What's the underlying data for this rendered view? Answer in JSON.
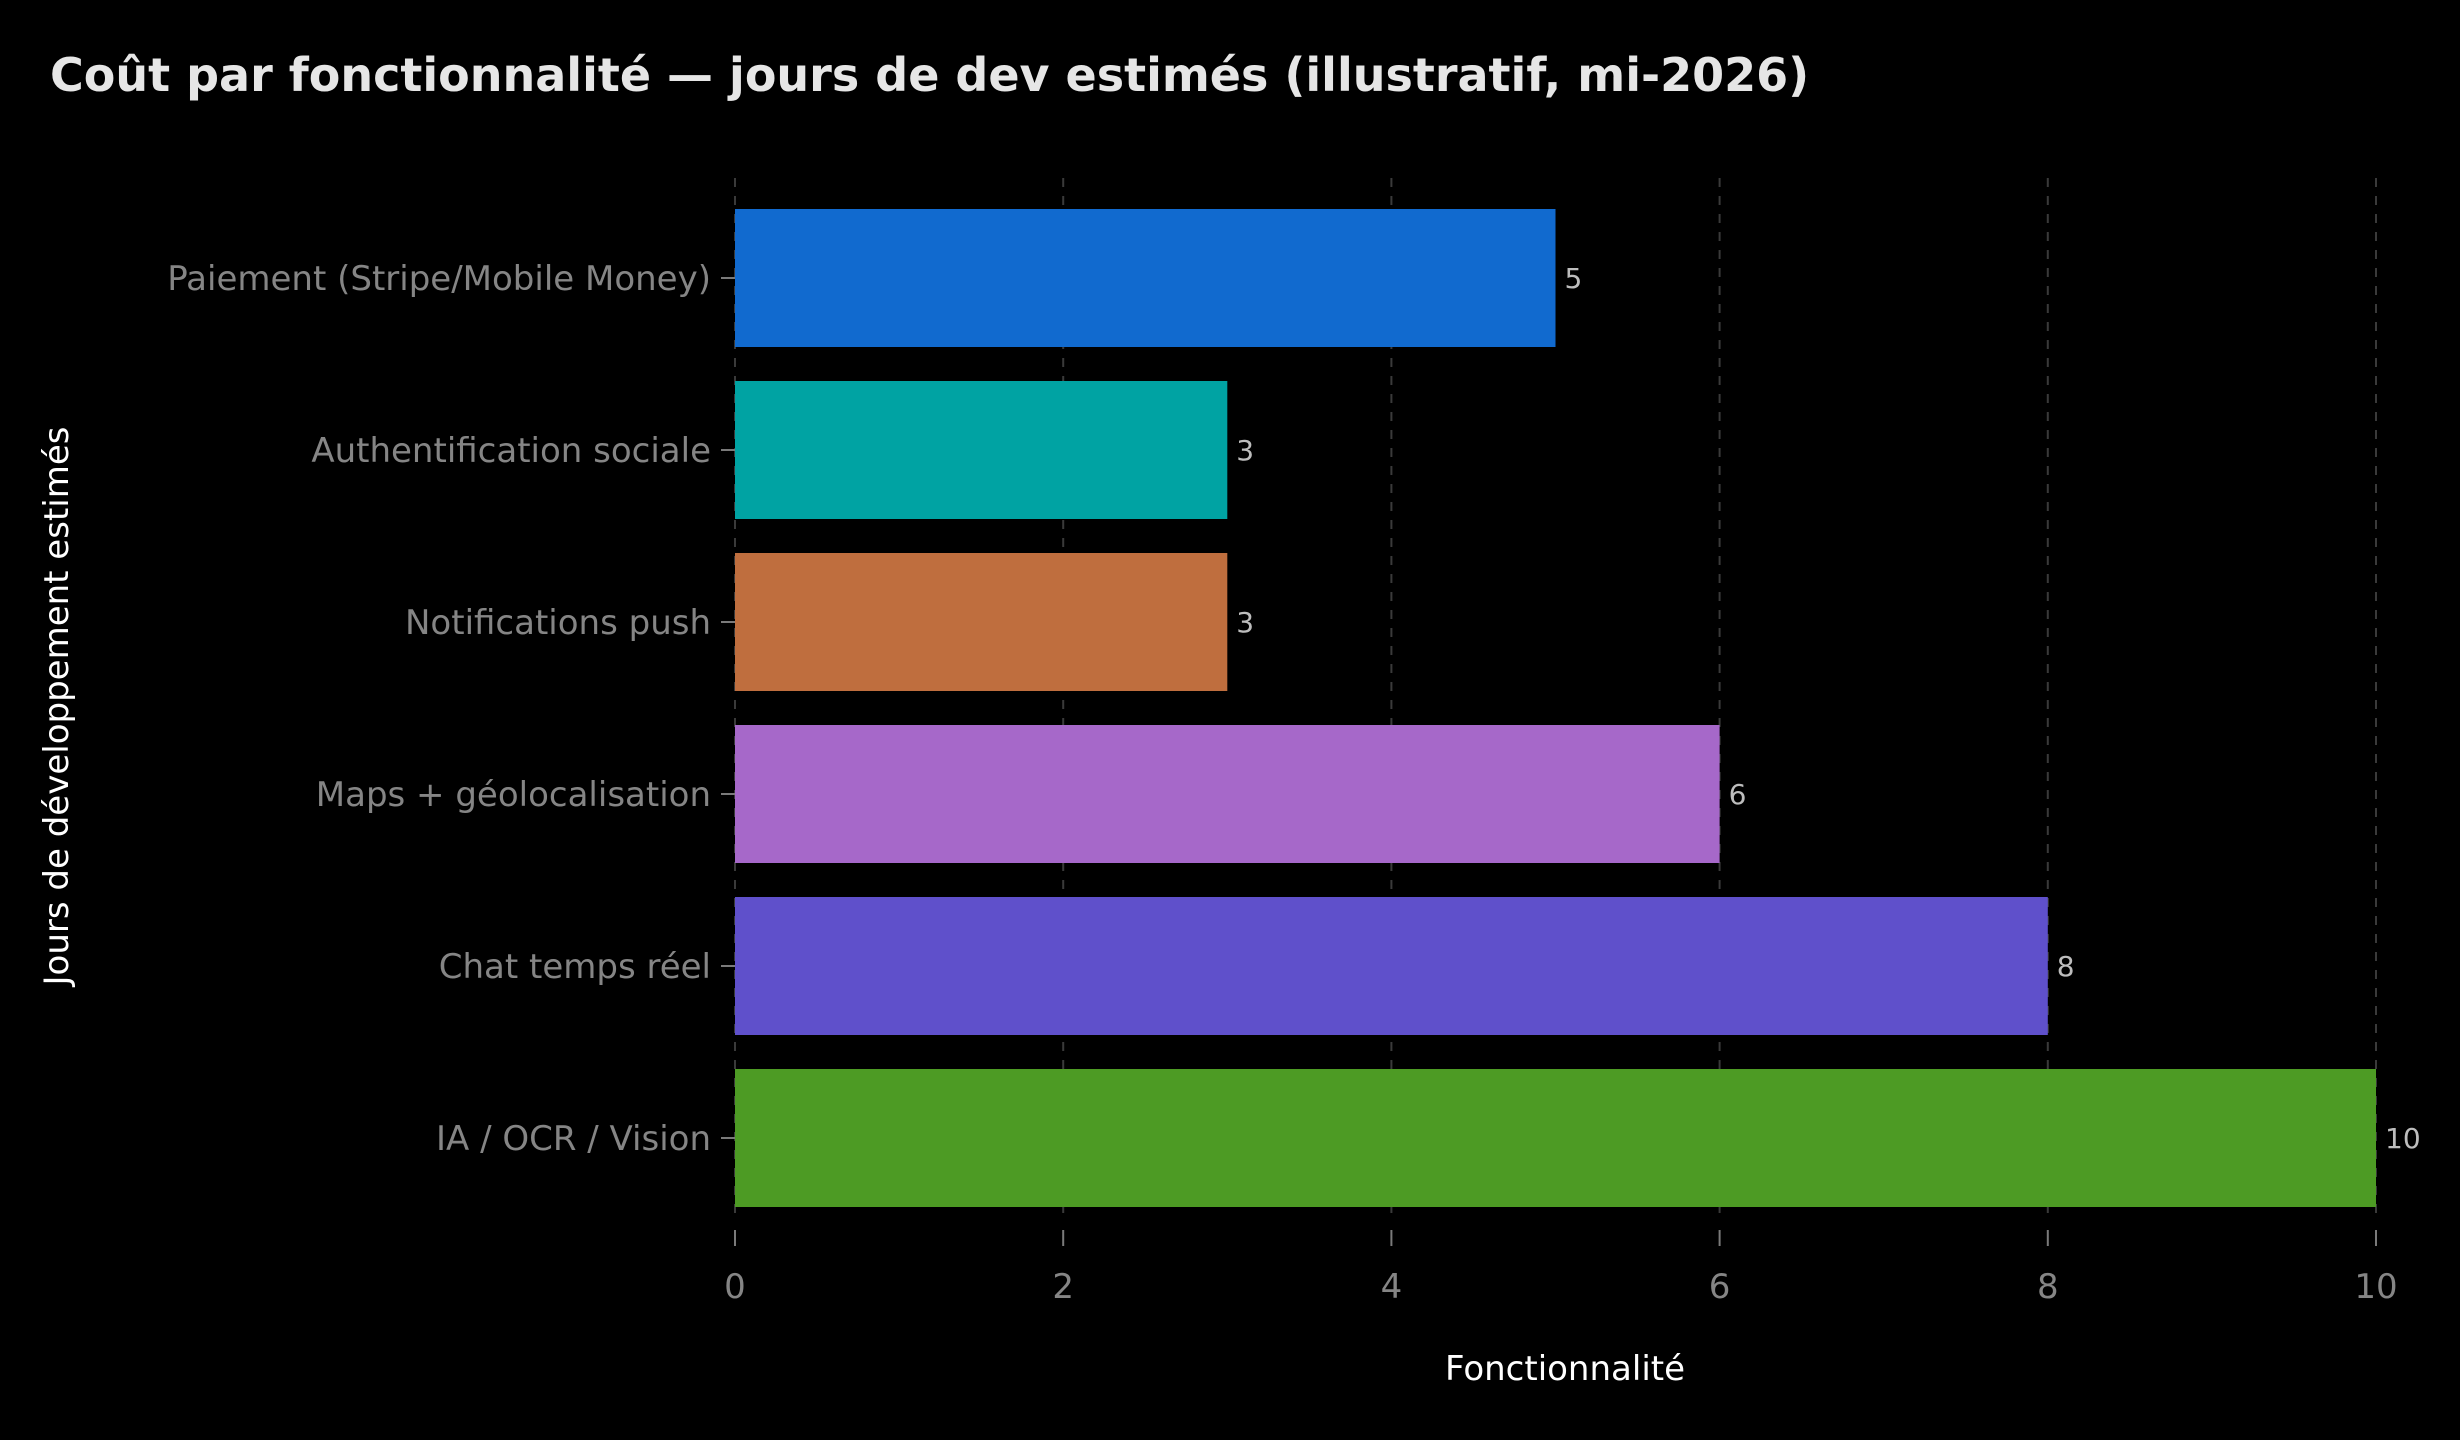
{
  "chart_data": {
    "type": "bar",
    "orientation": "horizontal",
    "title": "Coût par fonctionnalité — jours de dev estimés (illustratif, mi-2026)",
    "xlabel": "Fonctionnalité",
    "ylabel": "Jours de développement estimés",
    "categories": [
      "Paiement (Stripe/Mobile Money)",
      "Authentification sociale",
      "Notifications push",
      "Maps + géolocalisation",
      "Chat temps réel",
      "IA / OCR / Vision"
    ],
    "values": [
      5,
      3,
      3,
      6,
      8,
      10
    ],
    "value_labels": [
      "5",
      "3",
      "3",
      "6",
      "8",
      "10"
    ],
    "colors": [
      "#116acf",
      "#00a3a3",
      "#bf6e3e",
      "#a668c9",
      "#5f50cb",
      "#4d9b24"
    ],
    "xlim": [
      0,
      10
    ],
    "xticks": [
      0,
      2,
      4,
      6,
      8,
      10
    ],
    "xtick_labels": [
      "0",
      "2",
      "4",
      "6",
      "8",
      "10"
    ],
    "grid": "vertical, dashed",
    "legend": "none",
    "background": "#000000"
  }
}
